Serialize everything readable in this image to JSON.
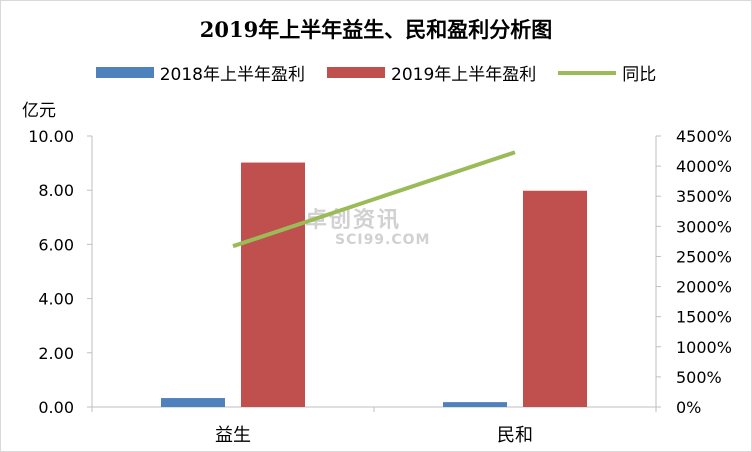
{
  "chart_data": {
    "type": "bar",
    "title": "2019年上半年益生、民和盈利分析图",
    "y_unit": "亿元",
    "categories": [
      "益生",
      "民和"
    ],
    "ylim": [
      0,
      10
    ],
    "yticks": [
      "0.00",
      "2.00",
      "4.00",
      "6.00",
      "8.00",
      "10.00"
    ],
    "y2lim": [
      0,
      4500
    ],
    "y2ticks": [
      "0%",
      "500%",
      "1000%",
      "1500%",
      "2000%",
      "2500%",
      "3000%",
      "3500%",
      "4000%",
      "4500%"
    ],
    "series": [
      {
        "name": "2018年上半年盈利",
        "type": "bar",
        "color": "#4f81bd",
        "values": [
          0.33,
          0.18
        ]
      },
      {
        "name": "2019年上半年盈利",
        "type": "bar",
        "color": "#c0504d",
        "values": [
          9.02,
          7.98
        ]
      },
      {
        "name": "同比",
        "type": "line",
        "axis": "right",
        "color": "#9bbb59",
        "values": [
          2670,
          4230
        ]
      }
    ],
    "grid": false,
    "legend": "top"
  },
  "watermark": {
    "cn": "卓创资讯",
    "en": "SCI99.COM"
  }
}
